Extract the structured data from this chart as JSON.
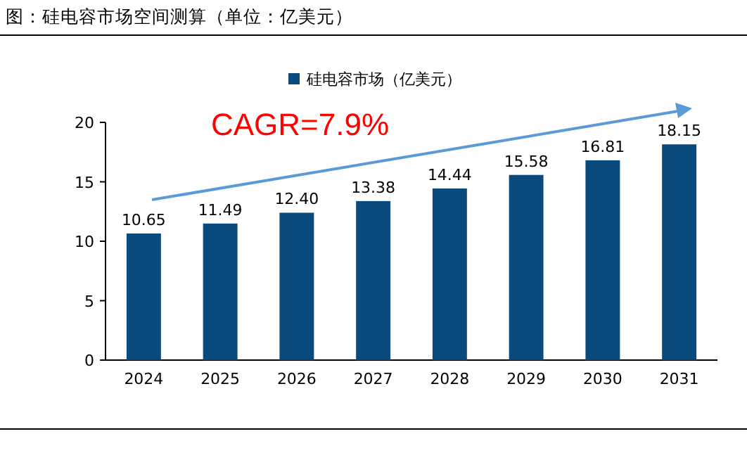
{
  "chart_data": {
    "type": "bar",
    "title": "图：硅电容市场空间测算（单位：亿美元）",
    "categories": [
      "2024",
      "2025",
      "2026",
      "2027",
      "2028",
      "2029",
      "2030",
      "2031"
    ],
    "series": [
      {
        "name": "硅电容市场（亿美元）",
        "color": "#0b4a7d",
        "values": [
          10.65,
          11.49,
          12.4,
          13.38,
          14.44,
          15.58,
          16.81,
          18.15
        ]
      }
    ],
    "value_labels": [
      "10.65",
      "11.49",
      "12.40",
      "13.38",
      "14.44",
      "15.58",
      "16.81",
      "18.15"
    ],
    "ylim": [
      0,
      20
    ],
    "yticks": [
      0,
      5,
      10,
      15,
      20
    ],
    "legend": "top",
    "annotations": [
      "CAGR=7.9%"
    ]
  }
}
